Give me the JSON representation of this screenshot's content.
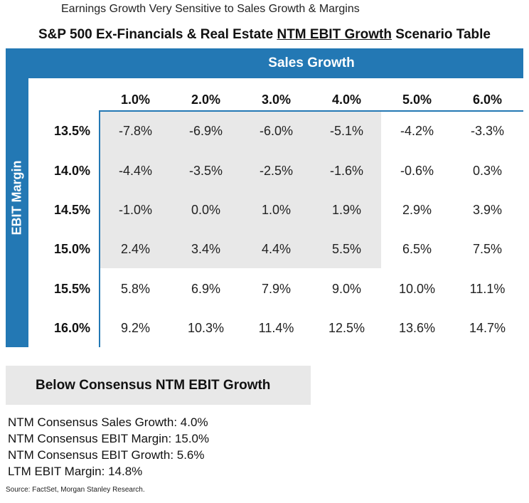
{
  "subtitle": "Earnings Growth Very Sensitive to Sales Growth & Margins",
  "title": {
    "prefix": "S&P 500 Ex-Financials & Real Estate ",
    "underlined": "NTM EBIT Growth",
    "suffix": " Scenario Table"
  },
  "colors": {
    "header_blue": "#2378b4",
    "shade_gray": "#e8e8e8"
  },
  "table": {
    "column_axis_label": "Sales Growth",
    "row_axis_label": "EBIT Margin",
    "columns": [
      "1.0%",
      "2.0%",
      "3.0%",
      "4.0%",
      "5.0%",
      "6.0%"
    ],
    "rows": [
      {
        "label": "13.5%",
        "cells": [
          "-7.8%",
          "-6.9%",
          "-6.0%",
          "-5.1%",
          "-4.2%",
          "-3.3%"
        ]
      },
      {
        "label": "14.0%",
        "cells": [
          "-4.4%",
          "-3.5%",
          "-2.5%",
          "-1.6%",
          "-0.6%",
          "0.3%"
        ]
      },
      {
        "label": "14.5%",
        "cells": [
          "-1.0%",
          "0.0%",
          "1.0%",
          "1.9%",
          "2.9%",
          "3.9%"
        ]
      },
      {
        "label": "15.0%",
        "cells": [
          "2.4%",
          "3.4%",
          "4.4%",
          "5.5%",
          "6.5%",
          "7.5%"
        ]
      },
      {
        "label": "15.5%",
        "cells": [
          "5.8%",
          "6.9%",
          "7.9%",
          "9.0%",
          "10.0%",
          "11.1%"
        ]
      },
      {
        "label": "16.0%",
        "cells": [
          "9.2%",
          "10.3%",
          "11.4%",
          "12.5%",
          "13.6%",
          "14.7%"
        ]
      }
    ]
  },
  "legend_box": {
    "label": "Below Consensus NTM EBIT Growth"
  },
  "notes": [
    "NTM Consensus Sales Growth: 4.0%",
    "NTM Consensus EBIT Margin: 15.0%",
    "NTM Consensus EBIT Growth: 5.6%",
    "LTM EBIT Margin: 14.8%"
  ],
  "source": "Source: FactSet, Morgan Stanley Research."
}
